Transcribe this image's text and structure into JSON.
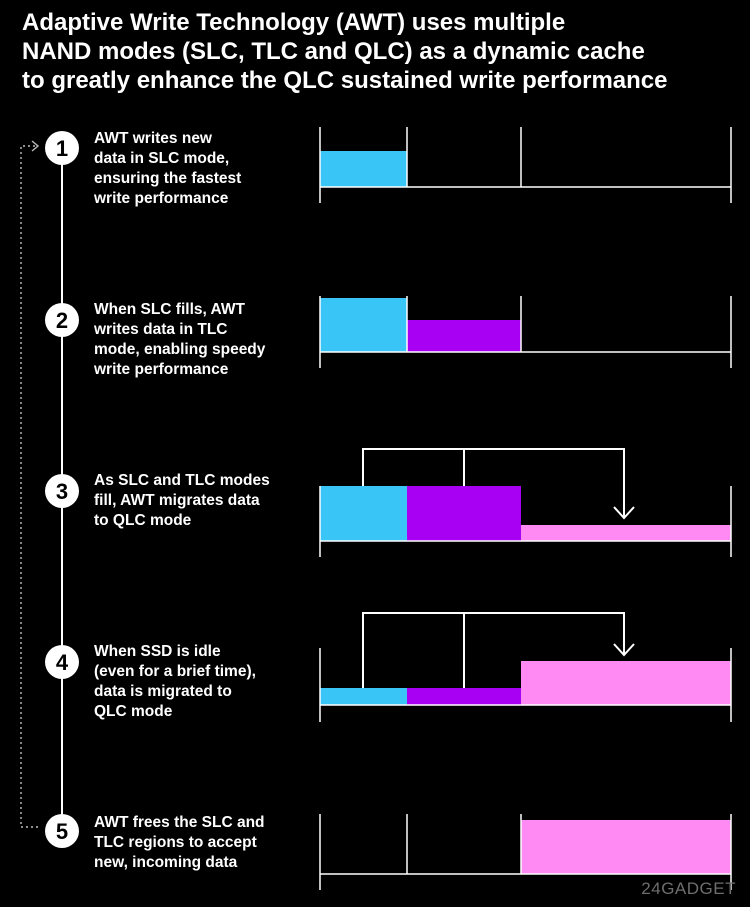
{
  "title": {
    "line1": "Adaptive Write Technology (AWT) uses multiple",
    "line2": "NAND modes (SLC, TLC and QLC) as a dynamic cache",
    "line3": "to greatly enhance the QLC sustained write performance"
  },
  "steps": [
    {
      "number": "1",
      "lines": [
        "AWT writes new",
        "data in SLC mode,",
        "ensuring the fastest",
        "write performance"
      ]
    },
    {
      "number": "2",
      "lines": [
        "When SLC fills, AWT",
        "writes data in TLC",
        "mode, enabling speedy",
        "write performance"
      ]
    },
    {
      "number": "3",
      "lines": [
        "As SLC and TLC modes",
        "fill, AWT migrates data",
        "to QLC mode"
      ]
    },
    {
      "number": "4",
      "lines": [
        "When SSD is idle",
        "(even for a brief time),",
        "data is migrated to",
        "QLC mode"
      ]
    },
    {
      "number": "5",
      "lines": [
        "AWT frees the SLC and",
        "TLC regions to accept",
        "new, incoming data"
      ]
    }
  ],
  "colors": {
    "slc": "#39c6f6",
    "tlc": "#a800f2",
    "qlc": "#ff8af4",
    "line": "#ffffff",
    "background": "#000000"
  },
  "watermark": "24GADGET"
}
